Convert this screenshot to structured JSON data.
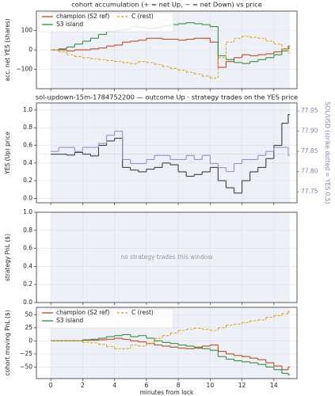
{
  "chart_data": [
    {
      "type": "line",
      "title": "cohort accumulation (+ = net Up, − = net Down) vs price",
      "ylabel": "acc. net YES (shares)",
      "x": [
        0,
        0.5,
        1,
        1.5,
        2,
        2.5,
        3,
        3.5,
        4,
        4.5,
        5,
        5.5,
        6,
        6.5,
        7,
        7.5,
        8,
        8.5,
        9,
        9.5,
        10,
        10.5,
        11,
        11.5,
        12,
        12.5,
        13,
        13.5,
        14,
        14.5,
        14.9
      ],
      "series": [
        {
          "name": "champion (S2 ref)",
          "color": "#c0471f",
          "linestyle": "solid",
          "values": [
            0,
            0,
            -5,
            0,
            0,
            5,
            10,
            20,
            25,
            40,
            45,
            50,
            60,
            60,
            55,
            55,
            50,
            55,
            60,
            60,
            40,
            -90,
            -60,
            -40,
            -25,
            -30,
            -25,
            -20,
            -10,
            5,
            20
          ]
        },
        {
          "name": "S3 island",
          "color": "#2f8f3a",
          "linestyle": "solid",
          "values": [
            0,
            5,
            15,
            30,
            45,
            60,
            80,
            95,
            100,
            105,
            120,
            115,
            110,
            115,
            125,
            130,
            135,
            140,
            135,
            130,
            120,
            -30,
            -50,
            -65,
            -70,
            -60,
            -50,
            -40,
            -25,
            -5,
            10
          ]
        },
        {
          "name": "C (rest)",
          "color": "#e6a11a",
          "linestyle": "dashed",
          "values": [
            0,
            -10,
            -25,
            -35,
            -40,
            -45,
            -50,
            -55,
            -60,
            -65,
            -70,
            -60,
            -65,
            -75,
            -85,
            -95,
            -105,
            -115,
            -125,
            -135,
            -145,
            -40,
            40,
            60,
            70,
            65,
            60,
            45,
            30,
            5,
            -15
          ]
        }
      ],
      "xlim": [
        -0.9,
        15.45
      ],
      "xticks": [
        0,
        2,
        4,
        6,
        8,
        10,
        12,
        14
      ],
      "shaded_span": [
        0,
        15
      ],
      "ylim": [
        -200,
        200
      ],
      "yticks": [
        {
          "value": -100,
          "label": "−100"
        },
        0,
        100
      ],
      "grid": true,
      "legend": "upper left",
      "legend_columns": 2
    },
    {
      "type": "line",
      "title": "sol-updown-15m-1784752200 — outcome Up · strategy trades on the YES price",
      "ylabel": "YES (Up) price",
      "y2label": "SOL/USD (strike dotted = YES 0.5)",
      "x": [
        0,
        0.5,
        1,
        1.5,
        2,
        2.5,
        3,
        3.5,
        4,
        4.5,
        5,
        5.5,
        6,
        6.5,
        7,
        7.5,
        8,
        8.5,
        9,
        9.5,
        10,
        10.5,
        11,
        11.5,
        12,
        12.5,
        13,
        13.5,
        14,
        14.5,
        14.9
      ],
      "series": [
        {
          "name": "YES price",
          "color": "#3d3d3d",
          "linestyle": "solid",
          "values": [
            0.5,
            0.5,
            0.49,
            0.52,
            0.5,
            0.48,
            0.6,
            0.65,
            0.68,
            0.35,
            0.32,
            0.3,
            0.33,
            0.35,
            0.4,
            0.38,
            0.3,
            0.25,
            0.27,
            0.3,
            0.35,
            0.2,
            0.12,
            0.06,
            0.2,
            0.3,
            0.35,
            0.45,
            0.6,
            0.85,
            0.95
          ]
        },
        {
          "name": "SOL/USD",
          "color": "#9a8ec9",
          "linestyle": "solid",
          "axis": "y2",
          "values": [
            77.85,
            77.86,
            77.86,
            77.85,
            77.86,
            77.86,
            77.87,
            77.89,
            77.9,
            77.83,
            77.82,
            77.82,
            77.83,
            77.84,
            77.84,
            77.83,
            77.83,
            77.84,
            77.83,
            77.84,
            77.82,
            77.81,
            77.8,
            77.82,
            77.83,
            77.83,
            77.84,
            77.85,
            77.86,
            77.86,
            77.84
          ]
        }
      ],
      "hline": 0.5,
      "xlim": [
        -0.9,
        15.45
      ],
      "xticks": [
        0,
        2,
        4,
        6,
        8,
        10,
        12,
        14
      ],
      "shaded_span": [
        0,
        15
      ],
      "ylim": [
        -0.05,
        1.08
      ],
      "yticks": [
        {
          "value": 0,
          "label": "0.0"
        },
        0.2,
        0.4,
        0.6,
        0.8,
        {
          "value": 1,
          "label": "1.0"
        }
      ],
      "y2lim": [
        77.723,
        77.97
      ],
      "y2ticks": [
        77.75,
        {
          "value": 77.8,
          "label": "77.80"
        },
        77.85,
        {
          "value": 77.9,
          "label": "77.90"
        },
        77.95
      ],
      "y2color": "#8a7cc0",
      "grid": true
    },
    {
      "type": "line",
      "ylabel": "strategy PnL ($)",
      "annotation": "no strategy trades this window",
      "xlim": [
        -0.9,
        15.45
      ],
      "xticks": [
        0,
        2,
        4,
        6,
        8,
        10,
        12,
        14
      ],
      "shaded_span": [
        0,
        15
      ],
      "ylim": [
        0,
        1
      ],
      "yticks": [
        {
          "value": 0,
          "label": "0.0"
        },
        0.2,
        0.4,
        0.6,
        0.8,
        {
          "value": 1,
          "label": "1.0"
        }
      ],
      "grid": true
    },
    {
      "type": "line",
      "ylabel": "cohort moving PnL ($)",
      "xlabel": "minutes from lock",
      "x": [
        0,
        0.5,
        1,
        1.5,
        2,
        2.5,
        3,
        3.5,
        4,
        4.5,
        5,
        5.5,
        6,
        6.5,
        7,
        7.5,
        8,
        8.5,
        9,
        9.5,
        10,
        10.5,
        11,
        11.5,
        12,
        12.5,
        13,
        13.5,
        14,
        14.5,
        14.9
      ],
      "series": [
        {
          "name": "champion (S2 ref)",
          "color": "#c0471f",
          "linestyle": "solid",
          "values": [
            0,
            0,
            0,
            0,
            1,
            1,
            2,
            3,
            5,
            3,
            0,
            -2,
            -5,
            -8,
            -10,
            -12,
            -14,
            -15,
            -14,
            -10,
            -8,
            -20,
            -25,
            -28,
            -30,
            -33,
            -36,
            -42,
            -48,
            -55,
            -50
          ]
        },
        {
          "name": "S3 island",
          "color": "#2f8f3a",
          "linestyle": "solid",
          "values": [
            0,
            0,
            0,
            0,
            2,
            3,
            5,
            8,
            10,
            12,
            8,
            10,
            5,
            0,
            -3,
            -5,
            -8,
            -10,
            -12,
            -15,
            -18,
            -30,
            -35,
            -38,
            -40,
            -42,
            -45,
            -50,
            -55,
            -62,
            -65
          ]
        },
        {
          "name": "C (rest)",
          "color": "#e6a11a",
          "linestyle": "dashed",
          "values": [
            0,
            0,
            0,
            0,
            -3,
            -4,
            -7,
            -11,
            -15,
            -15,
            -8,
            -10,
            -5,
            5,
            10,
            15,
            20,
            22,
            24,
            22,
            20,
            25,
            30,
            32,
            35,
            38,
            40,
            45,
            48,
            52,
            56
          ]
        }
      ],
      "xlim": [
        -0.9,
        15.45
      ],
      "xticks": [
        0,
        2,
        4,
        6,
        8,
        10,
        12,
        14
      ],
      "shaded_span": [
        0,
        15
      ],
      "ylim": [
        -72,
        64
      ],
      "yticks": [
        {
          "value": -50,
          "label": "−50"
        },
        {
          "value": -25,
          "label": "−25"
        },
        0,
        25,
        50
      ],
      "grid": true,
      "legend": "upper left",
      "legend_columns": 2
    }
  ]
}
